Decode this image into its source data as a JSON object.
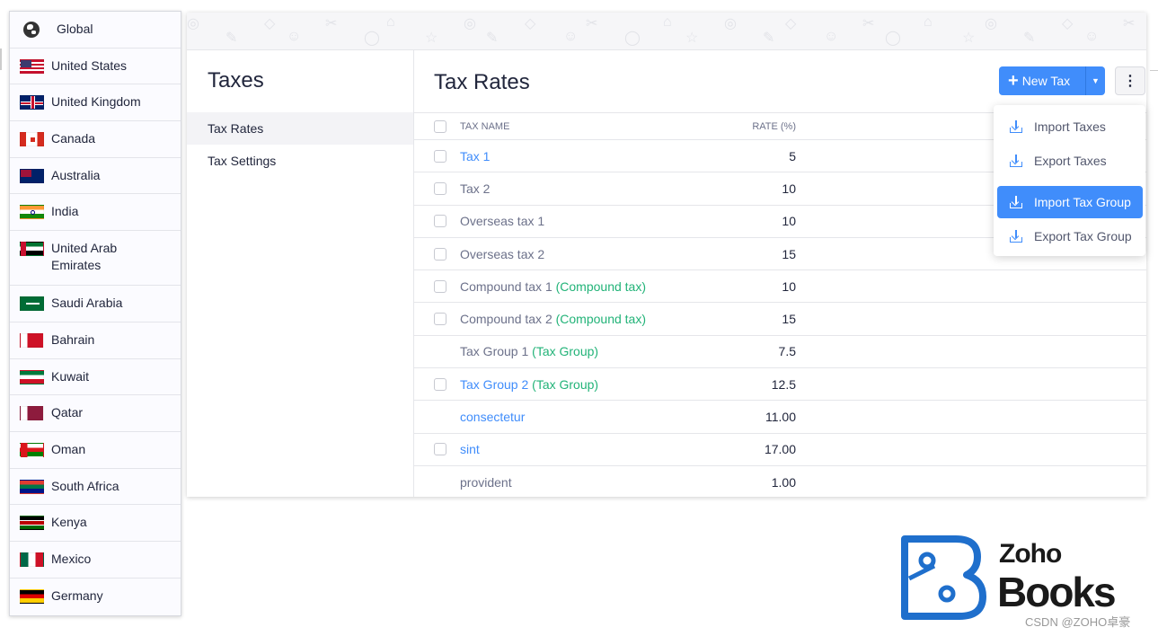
{
  "countries": [
    {
      "label": "Global",
      "icon": "globe-icon"
    },
    {
      "label": "United States",
      "icon": "flag-us-icon"
    },
    {
      "label": "United Kingdom",
      "icon": "flag-uk-icon"
    },
    {
      "label": "Canada",
      "icon": "flag-ca-icon"
    },
    {
      "label": "Australia",
      "icon": "flag-au-icon"
    },
    {
      "label": "India",
      "icon": "flag-in-icon"
    },
    {
      "label": "United Arab Emirates",
      "icon": "flag-ae-icon"
    },
    {
      "label": "Saudi Arabia",
      "icon": "flag-sa-icon"
    },
    {
      "label": "Bahrain",
      "icon": "flag-bh-icon"
    },
    {
      "label": "Kuwait",
      "icon": "flag-kw-icon"
    },
    {
      "label": "Qatar",
      "icon": "flag-qa-icon"
    },
    {
      "label": "Oman",
      "icon": "flag-om-icon"
    },
    {
      "label": "South Africa",
      "icon": "flag-za-icon"
    },
    {
      "label": "Kenya",
      "icon": "flag-ke-icon"
    },
    {
      "label": "Mexico",
      "icon": "flag-mx-icon"
    },
    {
      "label": "Germany",
      "icon": "flag-de-icon"
    }
  ],
  "settings": {
    "title": "Taxes",
    "items": [
      {
        "label": "Tax Rates",
        "active": true
      },
      {
        "label": "Tax Settings",
        "active": false
      }
    ]
  },
  "content": {
    "title": "Tax Rates",
    "new_tax_label": "New Tax",
    "more_label": "⋮"
  },
  "table": {
    "headers": {
      "name": "TAX NAME",
      "rate": "RATE (%)"
    },
    "rows": [
      {
        "name": "Tax 1",
        "tag": "",
        "rate": "5",
        "link": true,
        "checkbox": true
      },
      {
        "name": "Tax 2",
        "tag": "",
        "rate": "10",
        "link": false,
        "checkbox": true
      },
      {
        "name": "Overseas tax 1",
        "tag": "",
        "rate": "10",
        "link": false,
        "checkbox": true
      },
      {
        "name": "Overseas tax 2",
        "tag": "",
        "rate": "15",
        "link": false,
        "checkbox": true
      },
      {
        "name": "Compound tax 1",
        "tag": "(Compound tax)",
        "rate": "10",
        "link": false,
        "checkbox": true
      },
      {
        "name": "Compound tax 2",
        "tag": "(Compound tax)",
        "rate": "15",
        "link": false,
        "checkbox": true
      },
      {
        "name": "Tax Group 1",
        "tag": "(Tax Group)",
        "rate": "7.5",
        "link": false,
        "checkbox": false
      },
      {
        "name": "Tax Group 2",
        "tag": "(Tax Group)",
        "rate": "12.5",
        "link": true,
        "checkbox": true
      },
      {
        "name": "consectetur",
        "tag": "",
        "rate": "11.00",
        "link": true,
        "checkbox": false
      },
      {
        "name": "sint",
        "tag": "",
        "rate": "17.00",
        "link": true,
        "checkbox": true
      },
      {
        "name": "provident",
        "tag": "",
        "rate": "1.00",
        "link": false,
        "checkbox": false
      }
    ]
  },
  "menu": {
    "items": [
      {
        "label": "Import Taxes",
        "active": false
      },
      {
        "label": "Export Taxes",
        "active": false
      },
      {
        "label": "Import Tax Group",
        "active": true
      },
      {
        "label": "Export Tax Group",
        "active": false
      }
    ]
  },
  "logo": {
    "word1": "Zoho",
    "word2": "Books"
  },
  "watermark": "CSDN @ZOHO卓豪",
  "colors": {
    "accent": "#408dfb",
    "tag_green": "#22b378",
    "logo_blue": "#1f6fcc"
  }
}
